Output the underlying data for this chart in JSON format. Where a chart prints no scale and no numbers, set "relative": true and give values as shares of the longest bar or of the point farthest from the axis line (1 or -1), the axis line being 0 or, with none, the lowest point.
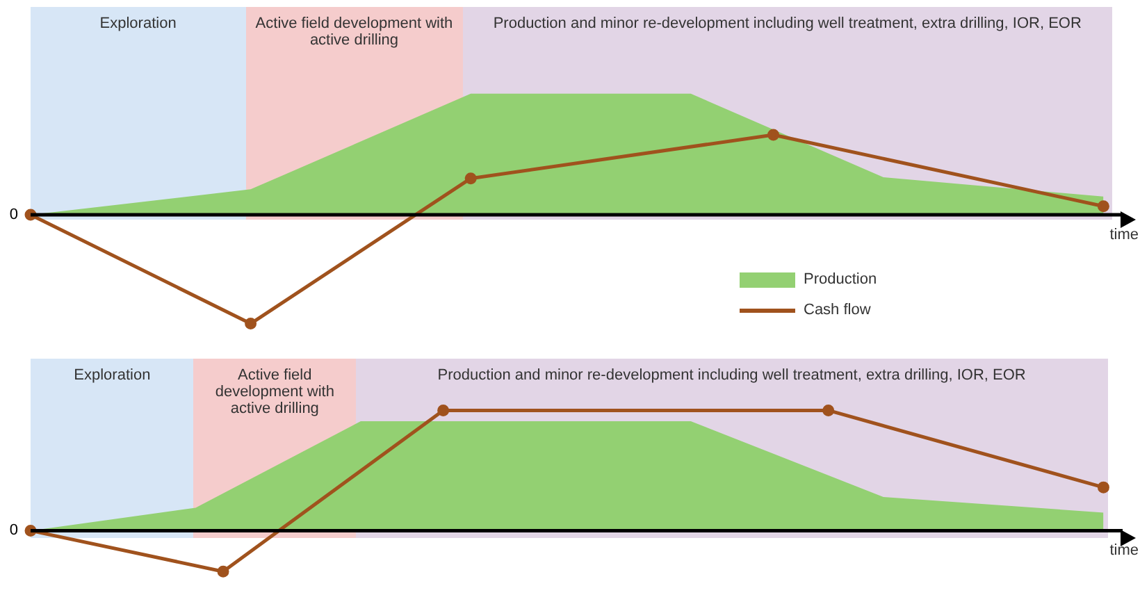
{
  "chart_data": [
    {
      "type": "line",
      "relative": true,
      "xlabel": "time",
      "legend": "bottom right",
      "categories": [
        null,
        null,
        null,
        null,
        null,
        null,
        null,
        null,
        null,
        null,
        null,
        null,
        null,
        null,
        null,
        null,
        null,
        null,
        null,
        null,
        null,
        null,
        null,
        null,
        null,
        null,
        null,
        null,
        null,
        null,
        null,
        null,
        null,
        null,
        null,
        null,
        null,
        null,
        null,
        null,
        null
      ],
      "annotations": [
        "0",
        "Exploration",
        "Active field development with active drilling",
        "Production and minor re-development including well treatment, extra drilling, IOR, EOR"
      ],
      "series": [
        {
          "name": "Production",
          "type": "area",
          "color": "#93d072",
          "marker": "none",
          "values": [
            0,
            null,
            null,
            null,
            null,
            null,
            null,
            null,
            0.21,
            null,
            null,
            null,
            null,
            null,
            null,
            null,
            1,
            null,
            null,
            null,
            null,
            null,
            null,
            null,
            1,
            null,
            null,
            null,
            null,
            null,
            null,
            0.31,
            null,
            null,
            null,
            null,
            null,
            null,
            null,
            0.15,
            null
          ]
        },
        {
          "name": "Cash flow",
          "type": "line",
          "color": "#a0521d",
          "marker": "circle",
          "values": [
            0,
            null,
            null,
            null,
            null,
            null,
            null,
            null,
            -0.9,
            null,
            null,
            null,
            null,
            null,
            null,
            null,
            0.3,
            null,
            null,
            null,
            null,
            null,
            null,
            null,
            null,
            null,
            null,
            0.66,
            null,
            null,
            null,
            null,
            null,
            null,
            null,
            null,
            null,
            null,
            null,
            0.07,
            null
          ]
        }
      ]
    },
    {
      "type": "line",
      "relative": true,
      "xlabel": "time",
      "categories": [
        null,
        null,
        null,
        null,
        null,
        null,
        null,
        null,
        null,
        null,
        null,
        null,
        null,
        null,
        null,
        null,
        null,
        null,
        null,
        null,
        null,
        null,
        null,
        null,
        null,
        null,
        null,
        null,
        null,
        null,
        null,
        null,
        null,
        null,
        null,
        null,
        null,
        null,
        null,
        null,
        null
      ],
      "annotations": [
        "0",
        "Exploration",
        "Active field development with active drilling",
        "Production and minor re-development including well treatment, extra drilling, IOR, EOR"
      ],
      "series": [
        {
          "type": "area",
          "color": "#93d072",
          "marker": "none",
          "values": [
            0,
            null,
            null,
            null,
            null,
            null,
            0.19,
            null,
            null,
            null,
            null,
            null,
            0.91,
            null,
            null,
            null,
            null,
            null,
            null,
            null,
            null,
            null,
            null,
            null,
            0.91,
            null,
            null,
            null,
            null,
            null,
            null,
            0.28,
            null,
            null,
            null,
            null,
            null,
            null,
            null,
            0.15,
            null
          ]
        },
        {
          "type": "line",
          "color": "#a0521d",
          "marker": "circle",
          "values": [
            0,
            null,
            null,
            null,
            null,
            null,
            null,
            -0.34,
            null,
            null,
            null,
            null,
            null,
            null,
            null,
            1,
            null,
            null,
            null,
            null,
            null,
            null,
            null,
            null,
            null,
            null,
            null,
            null,
            null,
            1,
            null,
            null,
            null,
            null,
            null,
            null,
            null,
            null,
            null,
            0.36,
            null
          ]
        }
      ]
    }
  ]
}
